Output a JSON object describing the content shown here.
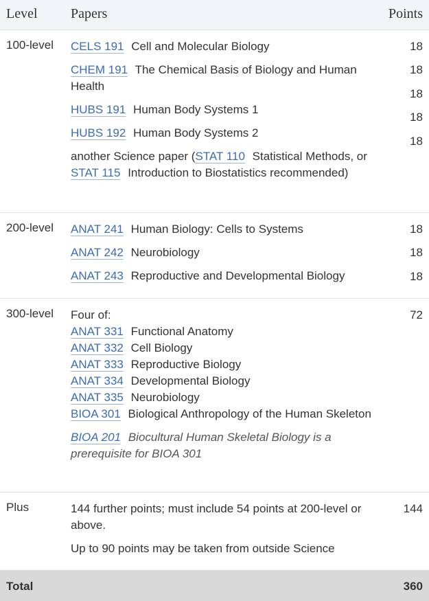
{
  "header": {
    "level": "Level",
    "papers": "Papers",
    "points": "Points"
  },
  "rows": {
    "r100": {
      "level": "100-level",
      "p1": {
        "code": "CELS 191",
        "title": "Cell and Molecular Biology"
      },
      "p2": {
        "code": "CHEM 191",
        "title": "The Chemical Basis of Biology and Human Health"
      },
      "p3": {
        "code": "HUBS 191",
        "title": "Human Body Systems 1"
      },
      "p4": {
        "code": "HUBS 192",
        "title": "Human Body Systems 2"
      },
      "p5": {
        "pre": "another Science paper (",
        "code_a": "STAT 110",
        "title_a": "Statistical Methods, or",
        "code_b": "STAT 115",
        "title_b": "Introduction to Biostatistics recommended)"
      },
      "points": [
        "18",
        "18",
        "18",
        "18",
        "18"
      ]
    },
    "r200": {
      "level": "200-level",
      "p1": {
        "code": "ANAT 241",
        "title": "Human Biology: Cells to Systems"
      },
      "p2": {
        "code": "ANAT 242",
        "title": "Neurobiology"
      },
      "p3": {
        "code": "ANAT 243",
        "title": "Reproductive and Developmental Biology"
      },
      "points": [
        "18",
        "18",
        "18"
      ]
    },
    "r300": {
      "level": "300-level",
      "intro": "Four of:",
      "items": [
        {
          "code": "ANAT 331",
          "title": "Functional Anatomy"
        },
        {
          "code": "ANAT 332",
          "title": "Cell Biology"
        },
        {
          "code": "ANAT 333",
          "title": "Reproductive Biology"
        },
        {
          "code": "ANAT 334",
          "title": "Developmental Biology"
        },
        {
          "code": "ANAT 335",
          "title": "Neurobiology"
        },
        {
          "code": "BIOA 301",
          "title": "Biological Anthropology of the Human Skeleton"
        }
      ],
      "note": {
        "code": "BIOA 201",
        "text": "Biocultural Human Skeletal Biology is a prerequisite for BIOA 301"
      },
      "points": "72"
    },
    "plus": {
      "level": "Plus",
      "line1": "144 further points; must include 54 points at 200-level or above.",
      "line2": "Up to 90 points may be taken from outside Science",
      "points": "144"
    }
  },
  "total": {
    "label": "Total",
    "points": "360"
  }
}
